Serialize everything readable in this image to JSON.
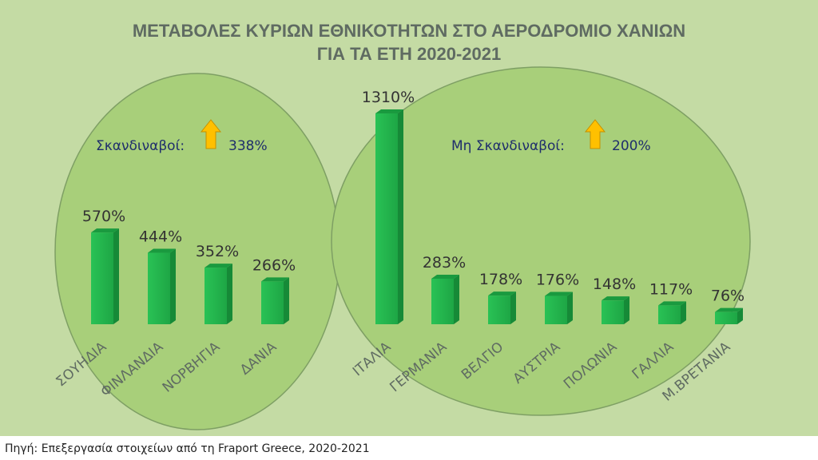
{
  "chart_data": {
    "type": "bar",
    "title": [
      "ΜΕΤΑΒΟΛΕΣ ΚΥΡΙΩΝ ΕΘΝΙΚΟΤΗΤΩΝ ΣΤΟ ΑΕΡΟΔΡΟΜΙΟ ΧΑΝΙΩΝ",
      "ΓΙΑ ΤΑ ΕΤΗ 2020-2021"
    ],
    "categories": [
      "ΣΟΥΗΔΙΑ",
      "ΦΙΝΛΑΝΔΙΑ",
      "ΝΟΡΒΗΓΙΑ",
      "ΔΑΝΙΑ",
      "ΙΤΑΛΙΑ",
      "ΓΕΡΜΑΝΙΑ",
      "ΒΕΛΓΙΟ",
      "ΑΥΣΤΡΙΑ",
      "ΠΟΛΩΝΙΑ",
      "ΓΑΛΛΙΑ",
      "Μ.ΒΡΕΤΑΝΙΑ"
    ],
    "values": [
      570,
      444,
      352,
      266,
      1310,
      283,
      178,
      176,
      148,
      117,
      76
    ],
    "value_labels": [
      "570%",
      "444%",
      "352%",
      "266%",
      "1310%",
      "283%",
      "178%",
      "176%",
      "148%",
      "117%",
      "76%"
    ],
    "unit": "%",
    "groups": [
      {
        "label": "Σκανδιναβοί:",
        "value_text": "338%",
        "direction": "up"
      },
      {
        "label": "Μη Σκανδιναβοί:",
        "value_text": "200%",
        "direction": "up"
      }
    ],
    "source": "Πηγή: Επεξεργασία στοιχείων από τη Fraport Greece, 2020-2021",
    "grid": false,
    "colors": {
      "bar": "#22b14c",
      "bar_side": "#168a37",
      "bar_top": "#1a9a3f",
      "panel": "#c4dba4",
      "ellipse": "#a8cf7a",
      "arrow": "#ffc000"
    }
  }
}
